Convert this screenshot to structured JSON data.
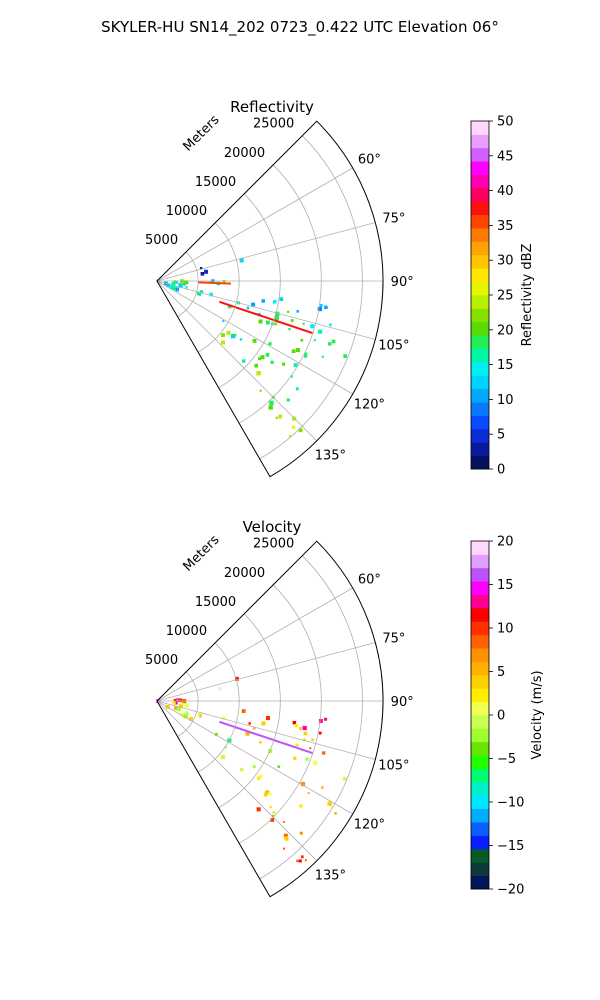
{
  "figure_title": "SKYLER-HU  SN14_202  0723_0.422 UTC Elevation 06°",
  "panels": [
    {
      "title": "Reflectivity",
      "radial_label": "Meters",
      "colorbar_label": "Reflectivity dBZ"
    },
    {
      "title": "Velocity",
      "radial_label": "Meters",
      "colorbar_label": "Velocity (m/s)"
    }
  ],
  "chart_data": [
    {
      "type": "heatmap",
      "projection": "polar-sector",
      "title": "Reflectivity",
      "radial_axis_label": "Meters",
      "radial_ticks": [
        5000,
        10000,
        15000,
        20000,
        25000
      ],
      "radial_tick_labels": [
        "5000",
        "10000",
        "15000",
        "20000",
        "25000"
      ],
      "rlim": [
        0,
        27500
      ],
      "theta_range_deg": [
        45,
        150
      ],
      "theta_ticks_deg": [
        60,
        75,
        90,
        105,
        120,
        135
      ],
      "theta_tick_labels": [
        "60°",
        "75°",
        "90°",
        "105°",
        "120°",
        "135°"
      ],
      "grid": true,
      "colorbar": {
        "label": "Reflectivity dBZ",
        "range": [
          0,
          50
        ],
        "ticks": [
          0,
          5,
          10,
          15,
          20,
          25,
          30,
          35,
          40,
          45,
          50
        ],
        "tick_labels": [
          "0",
          "5",
          "10",
          "15",
          "20",
          "25",
          "30",
          "35",
          "40",
          "45",
          "50"
        ]
      },
      "echo_regions": [
        {
          "az": [
            94,
            120
          ],
          "r": [
            1000,
            6000
          ],
          "value": 13
        },
        {
          "az": [
            86,
            94
          ],
          "r": [
            0,
            7500
          ],
          "value": 15
        },
        {
          "az": [
            89,
            93
          ],
          "r": [
            3000,
            9000
          ],
          "value": 20
        },
        {
          "az": [
            104,
            112
          ],
          "r": [
            4000,
            15000
          ],
          "value": 14
        },
        {
          "az": [
            96,
            104
          ],
          "r": [
            9000,
            21000
          ],
          "value": 12
        },
        {
          "az": [
            100,
            108
          ],
          "r": [
            12000,
            23000
          ],
          "value": 17
        },
        {
          "az": [
            108,
            116
          ],
          "r": [
            13000,
            25000
          ],
          "value": 18
        },
        {
          "az": [
            118,
            126
          ],
          "r": [
            7000,
            18000
          ],
          "value": 17
        },
        {
          "az": [
            116,
            124
          ],
          "r": [
            18000,
            26000
          ],
          "value": 19
        },
        {
          "az": [
            124,
            134
          ],
          "r": [
            10000,
            22000
          ],
          "value": 20
        },
        {
          "az": [
            132,
            140
          ],
          "r": [
            18000,
            27000
          ],
          "value": 22
        },
        {
          "az": [
            134,
            142
          ],
          "r": [
            22000,
            27000
          ],
          "value": 24
        },
        {
          "az": [
            70,
            82
          ],
          "r": [
            4500,
            8000
          ],
          "value": 6
        },
        {
          "az": [
            74,
            78
          ],
          "r": [
            9000,
            11000
          ],
          "value": 12
        }
      ],
      "echo_lines": [
        {
          "az": 108.5,
          "r": [
            8000,
            20000
          ],
          "value": 38
        },
        {
          "az": 92,
          "r": [
            5000,
            9000
          ],
          "value": 36
        }
      ]
    },
    {
      "type": "heatmap",
      "projection": "polar-sector",
      "title": "Velocity",
      "radial_axis_label": "Meters",
      "radial_ticks": [
        5000,
        10000,
        15000,
        20000,
        25000
      ],
      "radial_tick_labels": [
        "5000",
        "10000",
        "15000",
        "20000",
        "25000"
      ],
      "rlim": [
        0,
        27500
      ],
      "theta_range_deg": [
        45,
        150
      ],
      "theta_ticks_deg": [
        60,
        75,
        90,
        105,
        120,
        135
      ],
      "theta_tick_labels": [
        "60°",
        "75°",
        "90°",
        "105°",
        "120°",
        "135°"
      ],
      "grid": true,
      "colorbar": {
        "label": "Velocity (m/s)",
        "range": [
          -20,
          20
        ],
        "ticks": [
          -20,
          -15,
          -10,
          -5,
          0,
          5,
          10,
          15,
          20
        ],
        "tick_labels": [
          "−20",
          "−15",
          "−10",
          "−5",
          "0",
          "5",
          "10",
          "15",
          "20"
        ]
      },
      "echo_regions": [
        {
          "az": [
            86,
            96
          ],
          "r": [
            0,
            8000
          ],
          "value": 11
        },
        {
          "az": [
            80,
            86
          ],
          "r": [
            0,
            3000
          ],
          "value": 14
        },
        {
          "az": [
            94,
            120
          ],
          "r": [
            1000,
            5000
          ],
          "value": 1
        },
        {
          "az": [
            96,
            104
          ],
          "r": [
            9000,
            21000
          ],
          "value": 10
        },
        {
          "az": [
            100,
            108
          ],
          "r": [
            12000,
            23000
          ],
          "value": 6
        },
        {
          "az": [
            104,
            112
          ],
          "r": [
            5000,
            15000
          ],
          "value": 3
        },
        {
          "az": [
            108,
            116
          ],
          "r": [
            13000,
            25000
          ],
          "value": 1
        },
        {
          "az": [
            116,
            124
          ],
          "r": [
            18000,
            26000
          ],
          "value": 4
        },
        {
          "az": [
            118,
            126
          ],
          "r": [
            7000,
            18000
          ],
          "value": -3
        },
        {
          "az": [
            124,
            134
          ],
          "r": [
            10000,
            22000
          ],
          "value": 2
        },
        {
          "az": [
            132,
            140
          ],
          "r": [
            18000,
            27000
          ],
          "value": 7
        },
        {
          "az": [
            134,
            142
          ],
          "r": [
            22000,
            27000
          ],
          "value": 10
        },
        {
          "az": [
            72,
            80
          ],
          "r": [
            6500,
            8500
          ],
          "value": 16
        },
        {
          "az": [
            74,
            78
          ],
          "r": [
            9000,
            11000
          ],
          "value": 11
        }
      ],
      "echo_lines": [
        {
          "az": 108.5,
          "r": [
            8000,
            20000
          ],
          "value": 16
        }
      ]
    }
  ],
  "colors": {
    "reflectivity_scale": [
      "#03115e",
      "#0a1a9e",
      "#0a2dd8",
      "#0a4cff",
      "#0a78ff",
      "#00a8ff",
      "#00d2ff",
      "#00f0f0",
      "#00f5a8",
      "#22ee55",
      "#55dd00",
      "#88e000",
      "#b8ee00",
      "#e8f500",
      "#ffe600",
      "#ffc400",
      "#ffa200",
      "#ff7a00",
      "#ff4500",
      "#ff1010",
      "#ff0060",
      "#ff00b0",
      "#ff00ff",
      "#d060ff",
      "#e8a0ff",
      "#ffd8ff"
    ],
    "velocity_scale": [
      "#04165a",
      "#0f3a3a",
      "#075a2a",
      "#0a1fff",
      "#0a60ff",
      "#00aaff",
      "#00e6ff",
      "#00f0c8",
      "#00ff6e",
      "#22ff00",
      "#66e600",
      "#a0ff30",
      "#c8ff50",
      "#f0ff50",
      "#ffee00",
      "#ffd000",
      "#ffb000",
      "#ff9000",
      "#ff6000",
      "#ff3000",
      "#ff0000",
      "#ff0090",
      "#ff00ff",
      "#c050ff",
      "#e0a0ff",
      "#ffd8ff"
    ]
  }
}
